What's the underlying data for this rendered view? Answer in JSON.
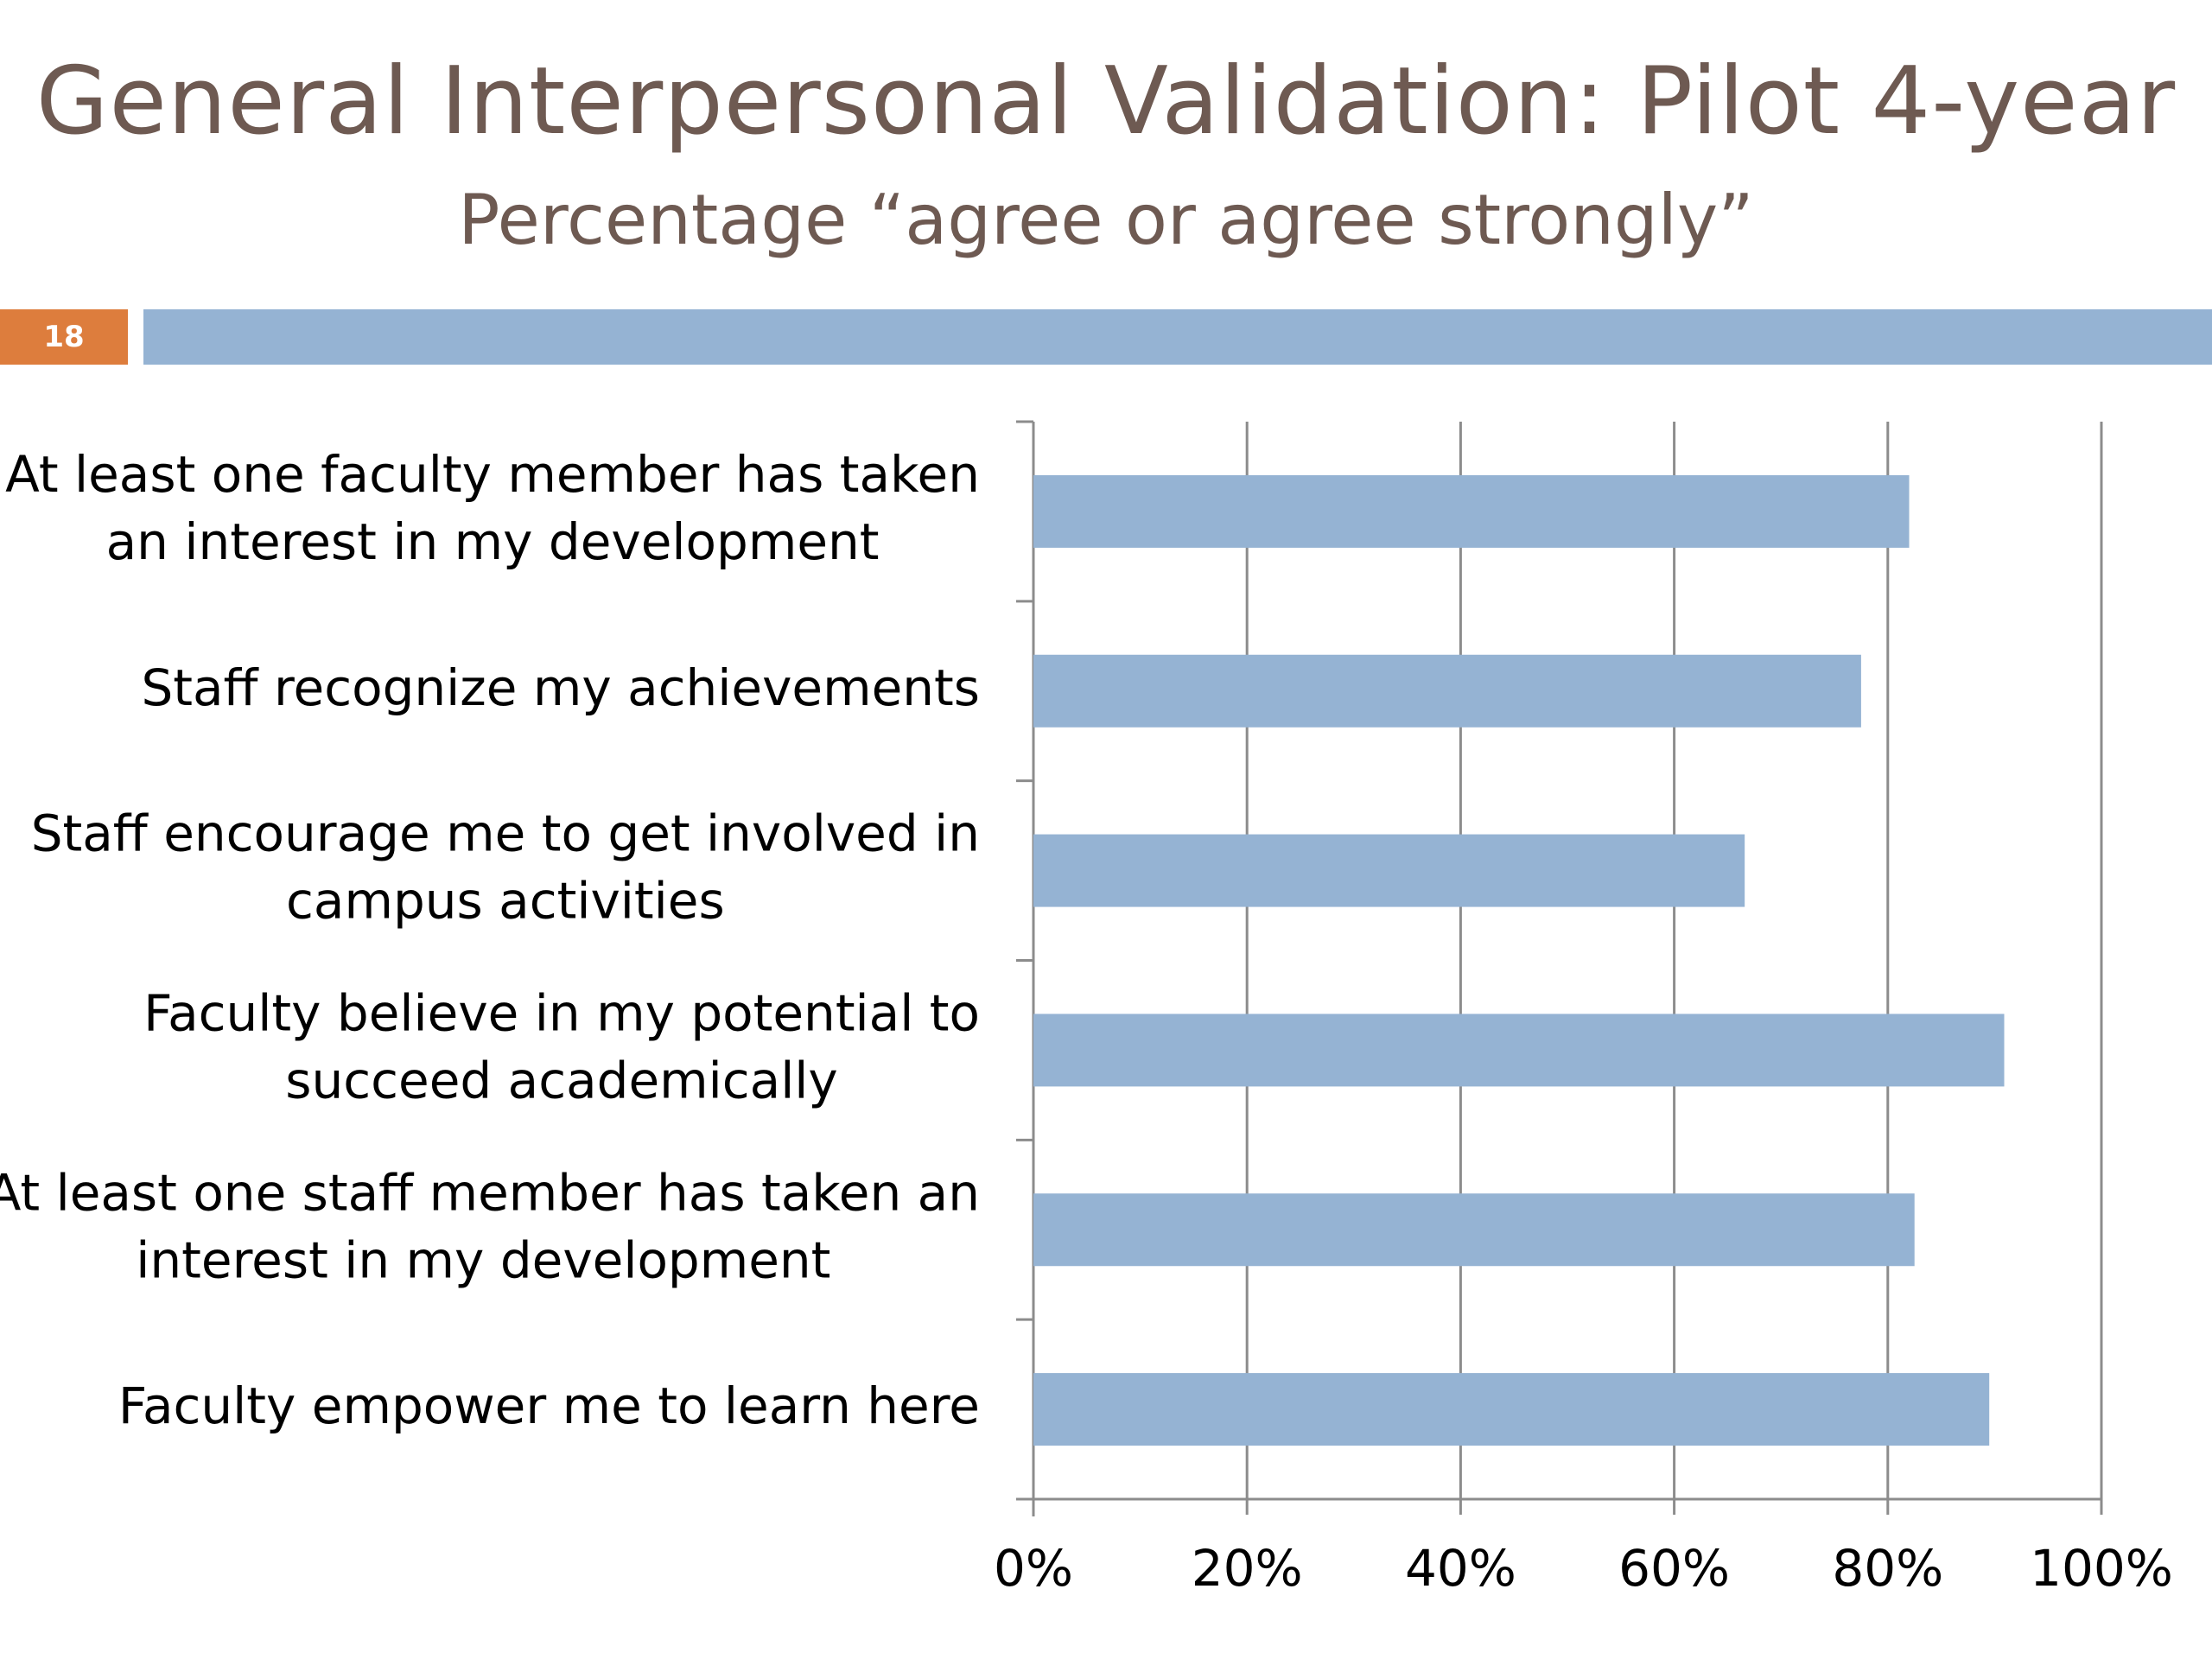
{
  "slide": {
    "title": "General Interpersonal Validation: Pilot 4-year",
    "subtitle": "Percentage “agree or agree strongly”",
    "slide_number": "18"
  },
  "colors": {
    "bar": "#95b3d3",
    "title": "#6e5a52",
    "accent": "#dd7d3d",
    "grid": "#8c8c8c"
  },
  "chart_data": {
    "type": "bar",
    "orientation": "horizontal",
    "title": "General Interpersonal Validation: Pilot 4-year",
    "subtitle": "Percentage “agree or agree strongly”",
    "categories": [
      [
        "At least one faculty member has taken",
        "an interest in my development"
      ],
      [
        "Staff recognize my achievements"
      ],
      [
        "Staff encourage me to get involved in",
        "campus activities"
      ],
      [
        "Faculty believe in my potential to",
        "succeed academically"
      ],
      [
        "At least one staff member has taken an",
        "interest in my development"
      ],
      [
        "Faculty empower me to learn here"
      ]
    ],
    "values": [
      82,
      77.5,
      66.6,
      90.9,
      82.5,
      89.5
    ],
    "xlim": [
      0,
      100
    ],
    "x_ticks": [
      0,
      20,
      40,
      60,
      80,
      100
    ],
    "x_tick_labels": [
      "0%",
      "20%",
      "40%",
      "60%",
      "80%",
      "100%"
    ],
    "grid": true,
    "legend": "none"
  }
}
